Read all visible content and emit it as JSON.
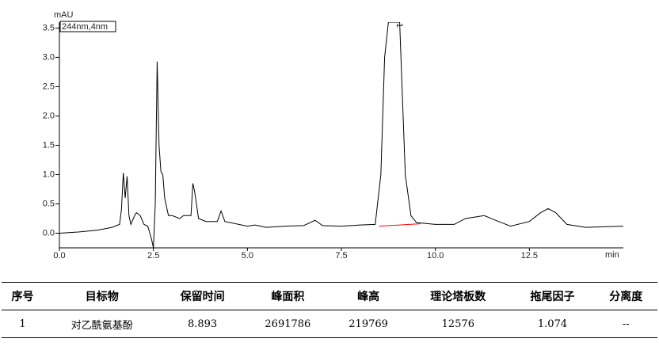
{
  "chart_data": {
    "type": "line",
    "y_label": "mAU",
    "x_label": "min",
    "legend_text": "244nm,4nm",
    "annotations": [
      "1"
    ],
    "xlim": [
      0,
      15
    ],
    "ylim": [
      -0.25,
      3.6
    ],
    "xticks": [
      {
        "value": 0,
        "label": "0.0"
      },
      2.5,
      {
        "value": 5,
        "label": "5.0"
      },
      7.5,
      {
        "value": 10,
        "label": "10.0"
      },
      12.5
    ],
    "yticks": [
      {
        "value": 0,
        "label": "0.0"
      },
      0.5,
      {
        "value": 1,
        "label": "1.0"
      },
      1.5,
      {
        "value": 2,
        "label": "2.0"
      },
      2.5,
      {
        "value": 3,
        "label": "3.0"
      },
      3.5
    ],
    "series": [
      {
        "color": "#000000",
        "x": [
          0,
          0.5,
          1.0,
          1.4,
          1.6,
          1.65,
          1.7,
          1.75,
          1.8,
          1.85,
          1.9,
          2.0,
          2.05,
          2.15,
          2.25,
          2.35,
          2.45,
          2.5,
          2.55,
          2.6,
          2.65,
          2.7,
          2.75,
          2.8,
          2.9,
          3.0,
          3.2,
          3.3,
          3.5,
          3.55,
          3.6,
          3.7,
          3.9,
          4.2,
          4.3,
          4.4,
          5.0,
          5.2,
          5.5,
          6.0,
          6.5,
          6.8,
          7.0,
          7.5,
          8.0,
          8.4,
          8.55,
          8.65,
          8.75,
          9.05,
          9.2,
          9.35,
          9.5,
          10.0,
          10.5,
          10.8,
          11.0,
          11.3,
          11.6,
          12.0,
          12.5,
          12.8,
          13.0,
          13.2,
          13.5,
          14.0,
          15.0
        ],
        "values": [
          0.0,
          0.02,
          0.05,
          0.1,
          0.15,
          0.4,
          1.03,
          0.6,
          0.97,
          0.3,
          0.15,
          0.3,
          0.35,
          0.3,
          0.15,
          0.12,
          -0.1,
          -0.25,
          0.5,
          2.93,
          1.5,
          1.05,
          1.0,
          0.6,
          0.3,
          0.3,
          0.25,
          0.3,
          0.3,
          0.85,
          0.7,
          0.25,
          0.2,
          0.2,
          0.38,
          0.2,
          0.12,
          0.14,
          0.1,
          0.12,
          0.13,
          0.22,
          0.13,
          0.12,
          0.14,
          0.15,
          1.0,
          3.0,
          3.6,
          3.6,
          1.0,
          0.3,
          0.18,
          0.15,
          0.15,
          0.25,
          0.27,
          0.3,
          0.22,
          0.12,
          0.2,
          0.35,
          0.42,
          0.35,
          0.15,
          0.1,
          0.12
        ]
      }
    ],
    "baseline": {
      "color": "#ff0000",
      "x": [
        8.5,
        9.6
      ],
      "values": [
        0.12,
        0.16
      ]
    }
  },
  "table": {
    "headers": [
      "序号",
      "目标物",
      "保留时间",
      "峰面积",
      "峰高",
      "理论塔板数",
      "拖尾因子",
      "分离度"
    ],
    "rows": [
      [
        "1",
        "对乙酰氨基酚",
        "8.893",
        "2691786",
        "219769",
        "12576",
        "1.074",
        "--"
      ]
    ]
  }
}
